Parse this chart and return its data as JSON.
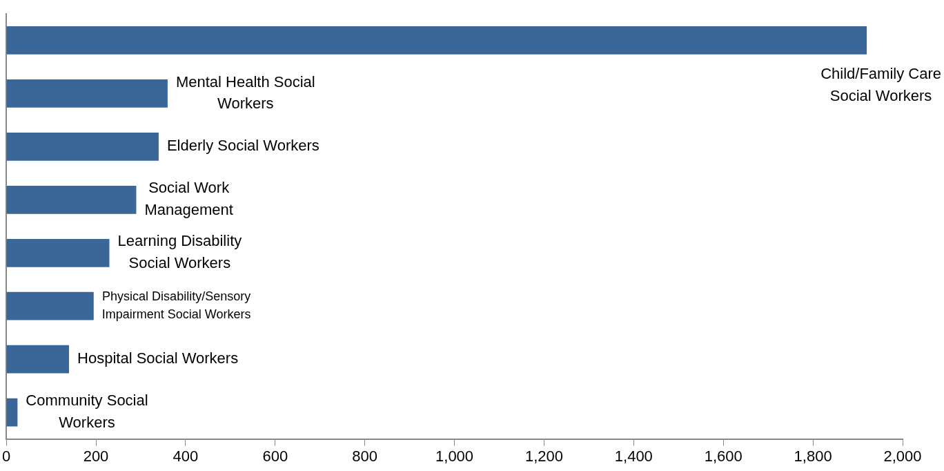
{
  "chart_data": {
    "type": "bar",
    "orientation": "horizontal",
    "categories": [
      "Child/Family Care Social Workers",
      "Mental Health Social Workers",
      "Elderly Social Workers",
      "Social Work Management",
      "Learning Disability Social Workers",
      "Physical Disability/Sensory Impairment Social Workers",
      "Hospital Social Workers",
      "Community Social Workers"
    ],
    "values": [
      1920,
      360,
      340,
      290,
      230,
      195,
      140,
      25
    ],
    "color": "#3b6698",
    "xlim": [
      0,
      2000
    ],
    "xticks": [
      0,
      200,
      400,
      600,
      800,
      {
        "value": 1000,
        "label": "1,000"
      },
      {
        "value": 1200,
        "label": "1,200"
      },
      {
        "value": 1400,
        "label": "1,400"
      },
      {
        "value": 1600,
        "label": "1,600"
      },
      {
        "value": 1800,
        "label": "1,800"
      },
      {
        "value": 2000,
        "label": "2,000"
      }
    ],
    "grid": false,
    "legend": false,
    "tick_labels": "x"
  }
}
